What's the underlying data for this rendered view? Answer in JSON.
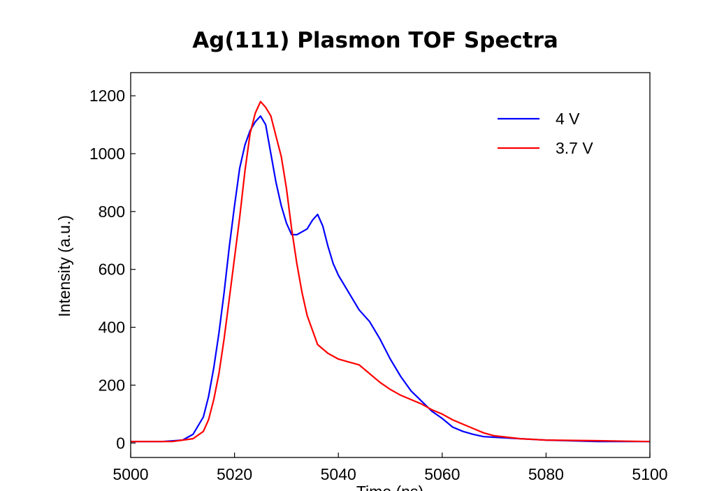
{
  "chart_data": {
    "type": "line",
    "title": "Ag(111) Plasmon TOF Spectra",
    "xlabel": "Time (ns)",
    "ylabel": "Intensity (a.u.)",
    "xlim": [
      5000,
      5100
    ],
    "ylim": [
      -50,
      1280
    ],
    "xticks": [
      5000,
      5020,
      5040,
      5060,
      5080,
      5100
    ],
    "yticks": [
      0,
      200,
      400,
      600,
      800,
      1000,
      1200
    ],
    "grid": false,
    "legend": "top-right",
    "series": [
      {
        "name": "4 V",
        "color": "#0000ff",
        "x": [
          5000,
          5006,
          5010,
          5012,
          5014,
          5015,
          5016,
          5017,
          5018,
          5019,
          5020,
          5021,
          5022,
          5023,
          5024,
          5025,
          5026,
          5027,
          5028,
          5029,
          5030,
          5031,
          5032,
          5033,
          5034,
          5035,
          5036,
          5037,
          5038,
          5039,
          5040,
          5042,
          5044,
          5046,
          5048,
          5050,
          5052,
          5054,
          5056,
          5058,
          5060,
          5062,
          5064,
          5066,
          5068,
          5070,
          5075,
          5080,
          5090,
          5100
        ],
        "y": [
          5,
          5,
          10,
          30,
          90,
          160,
          260,
          380,
          520,
          680,
          820,
          950,
          1030,
          1080,
          1110,
          1130,
          1100,
          1000,
          900,
          820,
          760,
          720,
          720,
          730,
          740,
          770,
          790,
          750,
          680,
          620,
          580,
          520,
          460,
          420,
          360,
          290,
          230,
          180,
          145,
          110,
          85,
          55,
          40,
          30,
          22,
          20,
          15,
          10,
          5,
          5
        ]
      },
      {
        "name": "3.7 V",
        "color": "#ff0000",
        "x": [
          5000,
          5008,
          5012,
          5014,
          5015,
          5016,
          5017,
          5018,
          5019,
          5020,
          5021,
          5022,
          5023,
          5024,
          5025,
          5026,
          5027,
          5028,
          5029,
          5030,
          5031,
          5032,
          5033,
          5034,
          5035,
          5036,
          5038,
          5040,
          5042,
          5044,
          5046,
          5048,
          5050,
          5052,
          5054,
          5056,
          5058,
          5060,
          5062,
          5064,
          5066,
          5068,
          5070,
          5075,
          5080,
          5090,
          5100
        ],
        "y": [
          5,
          5,
          15,
          40,
          80,
          150,
          240,
          360,
          500,
          640,
          780,
          940,
          1070,
          1140,
          1180,
          1160,
          1130,
          1060,
          990,
          880,
          740,
          620,
          520,
          440,
          390,
          340,
          310,
          290,
          280,
          270,
          240,
          210,
          185,
          165,
          150,
          135,
          115,
          100,
          80,
          65,
          50,
          35,
          25,
          15,
          10,
          8,
          5
        ]
      }
    ]
  }
}
